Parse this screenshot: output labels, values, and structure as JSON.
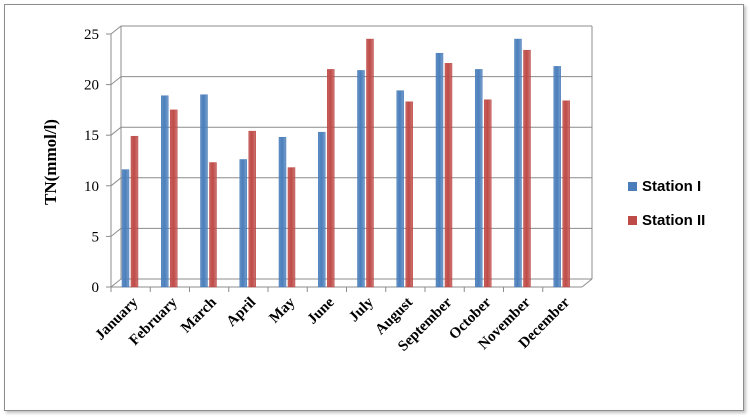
{
  "chart_data": {
    "type": "bar",
    "categories": [
      "January",
      "February",
      "March",
      "April",
      "May",
      "June",
      "July",
      "August",
      "September",
      "October",
      "November",
      "December"
    ],
    "series": [
      {
        "name": "Station I",
        "color": "#4a7ebb",
        "values": [
          11.6,
          18.9,
          19.0,
          12.6,
          14.8,
          15.3,
          21.4,
          19.4,
          23.1,
          21.5,
          24.5,
          21.8
        ]
      },
      {
        "name": "Station II",
        "color": "#be4b48",
        "values": [
          14.9,
          17.5,
          12.3,
          15.4,
          11.8,
          21.5,
          24.5,
          18.3,
          22.1,
          18.5,
          23.4,
          18.4
        ]
      }
    ],
    "ylabel": "TN(mmol/l)",
    "xlabel": "",
    "ylim": [
      0,
      25
    ],
    "yticks": [
      0,
      5,
      10,
      15,
      20,
      25
    ],
    "grid": true,
    "legend_position": "right"
  }
}
